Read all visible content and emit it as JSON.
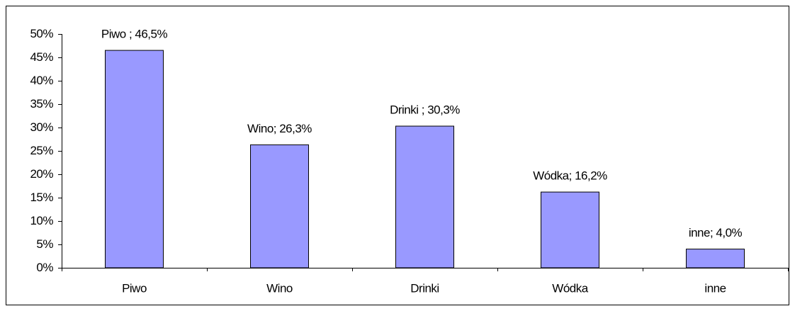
{
  "chart_data": {
    "type": "bar",
    "categories": [
      "Piwo",
      "Wino",
      "Drinki",
      "Wódka",
      "inne"
    ],
    "values": [
      46.5,
      26.3,
      30.3,
      16.2,
      4.0
    ],
    "value_labels": [
      "Piwo ; 46,5%",
      "Wino; 26,3%",
      "Drinki ; 30,3%",
      "Wódka; 16,2%",
      "inne; 4,0%"
    ],
    "color": "#9999ff",
    "ylim": [
      0,
      50
    ],
    "yticks": [
      {
        "value": 0,
        "label": "0%"
      },
      {
        "value": 5,
        "label": "5%"
      },
      {
        "value": 10,
        "label": "10%"
      },
      {
        "value": 15,
        "label": "15%"
      },
      {
        "value": 20,
        "label": "20%"
      },
      {
        "value": 25,
        "label": "25%"
      },
      {
        "value": 30,
        "label": "30%"
      },
      {
        "value": 35,
        "label": "35%"
      },
      {
        "value": 40,
        "label": "40%"
      },
      {
        "value": 45,
        "label": "45%"
      },
      {
        "value": 50,
        "label": "50%"
      }
    ],
    "grid": false
  }
}
